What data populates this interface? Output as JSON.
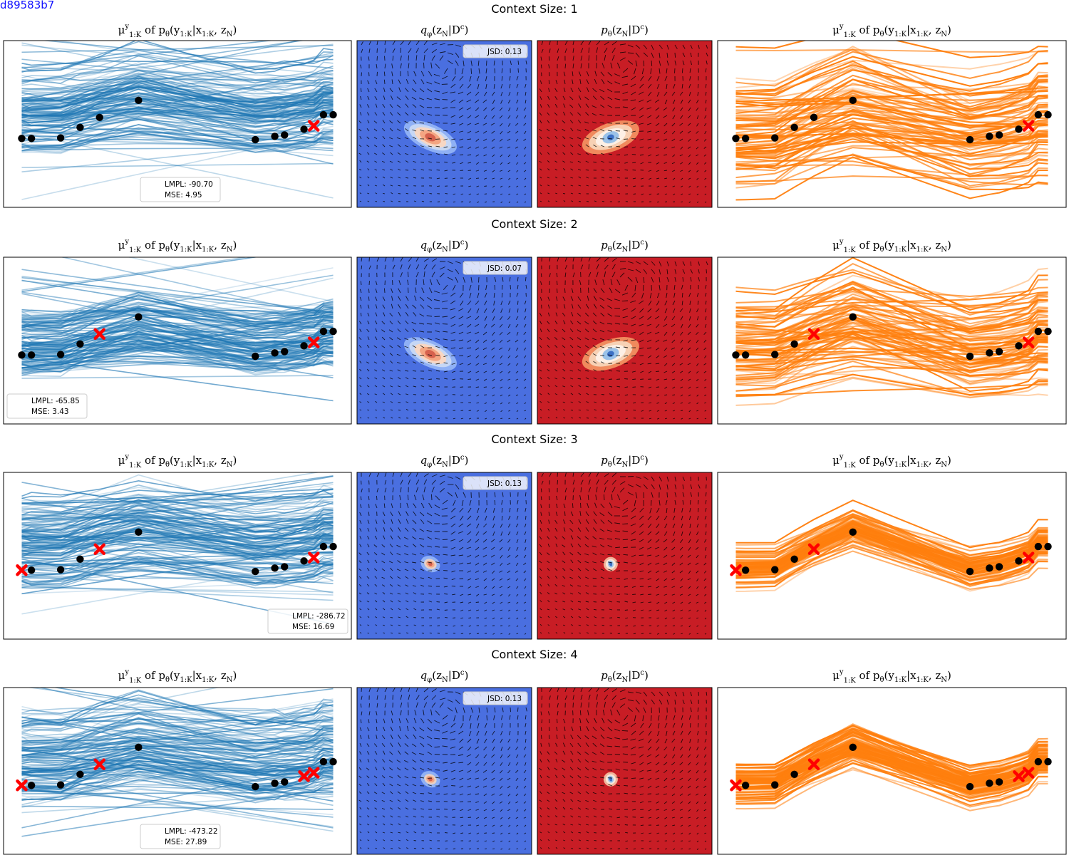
{
  "figure_id": "d89583b7",
  "colors": {
    "blue_line": "#1f77b4",
    "orange_line": "#ff7f0e",
    "coolwarm_low": "#4a6fe0",
    "coolwarm_high": "#c81d25",
    "context_marker": "#ff0000",
    "target_marker": "#000000"
  },
  "panel_titles": {
    "left": "μ^y_{1:K} of p_θ(y_{1:K}|x_{1:K}, z_N)",
    "q": "q_φ(z_N|D^c)",
    "p": "p_θ(z_N|D^c)",
    "right": "μ^y_{1:K} of p_θ(y_{1:K}|x_{1:K}, z_N)"
  },
  "chart_data": [
    {
      "type": "line",
      "title": "Context Size: 1",
      "context_size": 1,
      "target_points": {
        "x": [
          0,
          0.5,
          2,
          3,
          4,
          6,
          12,
          13,
          13.5,
          14.5,
          15.5,
          16
        ],
        "y": [
          -0.3,
          -0.3,
          -0.28,
          0.12,
          0.5,
          1.15,
          -0.35,
          -0.22,
          -0.17,
          0.05,
          0.6,
          0.6
        ]
      },
      "context_points": {
        "x": [
          15
        ],
        "y": [
          0.18
        ]
      },
      "legend": {
        "lmpl_label": "LMPL: -90.70",
        "mse_label": "MSE: 4.95",
        "position": "lower center"
      },
      "jsd_label": "JSD: 0.13",
      "posterior_samples": "wide",
      "latent_mode": "spread"
    },
    {
      "type": "line",
      "title": "Context Size: 2",
      "context_size": 2,
      "target_points": {
        "x": [
          0,
          0.5,
          2,
          3,
          6,
          12,
          13,
          13.5,
          14.5,
          15.5,
          16
        ],
        "y": [
          -0.3,
          -0.3,
          -0.28,
          0.12,
          1.15,
          -0.35,
          -0.22,
          -0.17,
          0.05,
          0.6,
          0.6
        ]
      },
      "context_points": {
        "x": [
          4,
          15
        ],
        "y": [
          0.5,
          0.18
        ]
      },
      "legend": {
        "lmpl_label": "LMPL: -65.85",
        "mse_label": "MSE: 3.43",
        "position": "lower left"
      },
      "jsd_label": "JSD: 0.07",
      "posterior_samples": "medium",
      "latent_mode": "spread"
    },
    {
      "type": "line",
      "title": "Context Size: 3",
      "context_size": 3,
      "target_points": {
        "x": [
          0.5,
          2,
          3,
          6,
          12,
          13,
          13.5,
          14.5,
          15.5,
          16
        ],
        "y": [
          -0.3,
          -0.28,
          0.12,
          1.15,
          -0.35,
          -0.22,
          -0.17,
          0.05,
          0.6,
          0.6
        ]
      },
      "context_points": {
        "x": [
          0,
          4,
          15
        ],
        "y": [
          -0.3,
          0.5,
          0.18
        ]
      },
      "legend": {
        "lmpl_label": "LMPL: -286.72",
        "mse_label": "MSE: 16.69",
        "position": "lower right"
      },
      "jsd_label": "JSD: 0.13",
      "posterior_samples": "wide",
      "latent_mode": "compact"
    },
    {
      "type": "line",
      "title": "Context Size: 4",
      "context_size": 4,
      "target_points": {
        "x": [
          0.5,
          2,
          3,
          6,
          12,
          13,
          13.5,
          15.5,
          16
        ],
        "y": [
          -0.3,
          -0.28,
          0.12,
          1.15,
          -0.35,
          -0.22,
          -0.17,
          0.6,
          0.6
        ]
      },
      "context_points": {
        "x": [
          0,
          4,
          14.5,
          15
        ],
        "y": [
          -0.3,
          0.5,
          0.05,
          0.18
        ]
      },
      "legend": {
        "lmpl_label": "LMPL: -473.22",
        "mse_label": "MSE: 27.89",
        "position": "lower center"
      },
      "jsd_label": "JSD: 0.13",
      "posterior_samples": "wide",
      "latent_mode": "compact"
    }
  ]
}
